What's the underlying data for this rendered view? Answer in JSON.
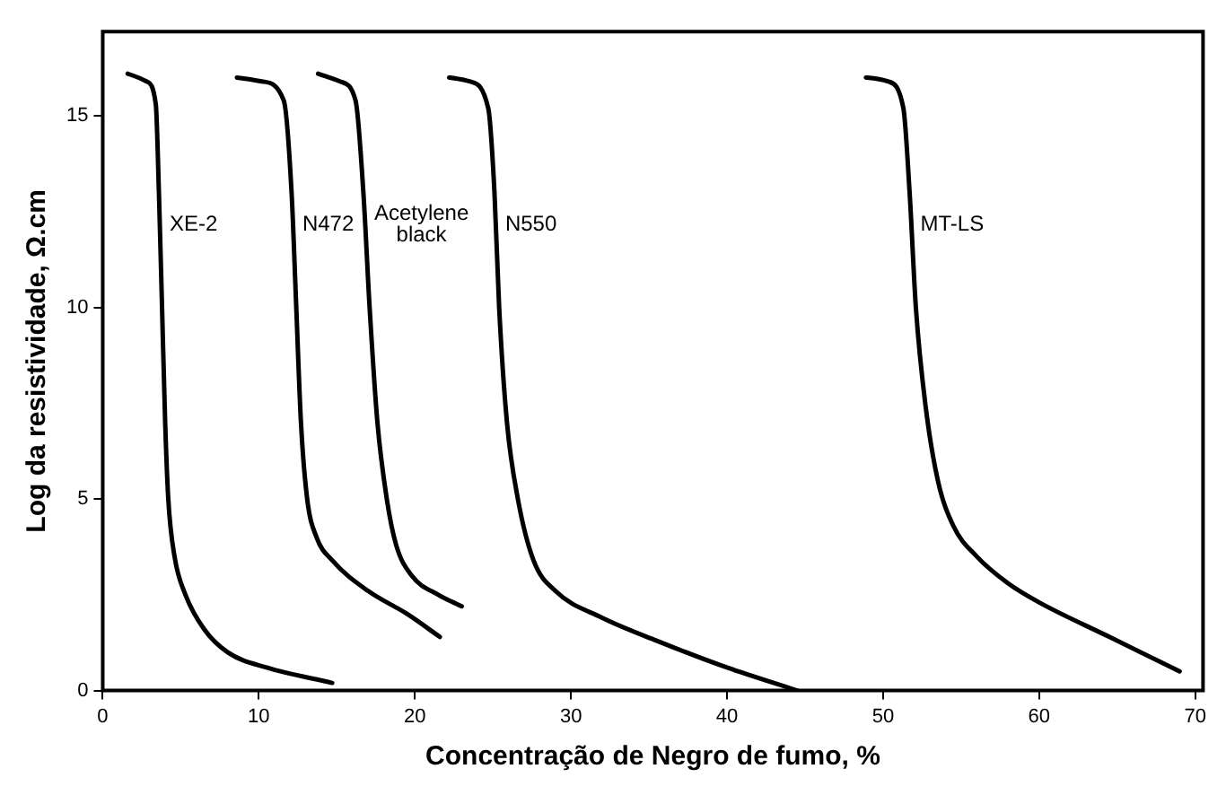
{
  "chart_data": {
    "type": "line",
    "xlabel": "Concentração de Negro de fumo, %",
    "ylabel": "Log da resistividade, Ω.cm",
    "xlim": [
      0,
      70.5
    ],
    "xticks": [
      0,
      10,
      20,
      30,
      40,
      50,
      60,
      70
    ],
    "ylim": [
      0,
      17.2
    ],
    "yticks": [
      0,
      5,
      10,
      15
    ],
    "grid": false,
    "legend": false,
    "marker": "none",
    "line_style": "solid",
    "series": [
      {
        "name": "XE-2",
        "color": "#000000",
        "x": [
          1.6,
          2.8,
          3.4,
          3.6,
          3.8,
          4.0,
          4.2,
          4.6,
          5.3,
          6.5,
          8,
          10.5,
          14.7
        ],
        "values": [
          16.1,
          15.9,
          15.3,
          13,
          10,
          7,
          5,
          3.5,
          2.5,
          1.6,
          1.0,
          0.6,
          0.2
        ]
      },
      {
        "name": "N472",
        "color": "#000000",
        "x": [
          8.6,
          10.2,
          11.6,
          12.1,
          12.4,
          12.7,
          13.1,
          13.7,
          14.7,
          17,
          19.5,
          21.6
        ],
        "values": [
          16.0,
          15.9,
          15.4,
          13,
          10,
          7,
          5,
          4,
          3.4,
          2.6,
          2,
          1.4
        ]
      },
      {
        "name": "Acetylene black",
        "color": "#000000",
        "x": [
          13.8,
          15.2,
          16.2,
          16.7,
          17.1,
          17.6,
          18.2,
          18.8,
          19.8,
          21.5,
          23
        ],
        "values": [
          16.1,
          15.9,
          15.4,
          13,
          10,
          7,
          5,
          3.8,
          3,
          2.5,
          2.2
        ]
      },
      {
        "name": "N550",
        "color": "#000000",
        "x": [
          22.2,
          23.5,
          24.7,
          25.1,
          25.4,
          25.9,
          26.6,
          27.6,
          29,
          32,
          35.5,
          40,
          44.5
        ],
        "values": [
          16.0,
          15.9,
          15.2,
          13,
          10,
          7,
          5,
          3.4,
          2.6,
          1.9,
          1.3,
          0.6,
          0
        ]
      },
      {
        "name": "MT-LS",
        "color": "#000000",
        "x": [
          48.9,
          50.3,
          51.3,
          51.7,
          52.1,
          52.7,
          53.5,
          54.5,
          56,
          58,
          60,
          64.5,
          69
        ],
        "values": [
          16.0,
          15.9,
          15.2,
          13,
          10,
          7.5,
          5.5,
          4.3,
          3.5,
          2.8,
          2.3,
          1.4,
          0.5
        ]
      }
    ]
  }
}
